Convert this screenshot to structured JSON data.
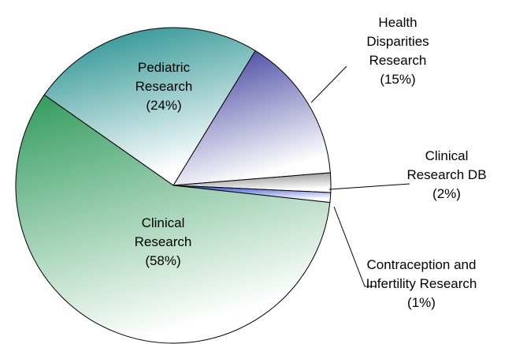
{
  "chart_data": {
    "type": "pie",
    "categories": [
      "Pediatric Research",
      "Health Disparities Research",
      "Clinical Research DB",
      "Contraception and Infertility Research",
      "Clinical Research"
    ],
    "values": [
      24,
      15,
      2,
      1,
      58
    ],
    "value_labels": [
      "(24%)",
      "(15%)",
      "(2%)",
      "(1%)",
      "(58%)"
    ],
    "colors": [
      "#1a8a8a",
      "#34349a",
      "#7a7a7a",
      "#1f3fd0",
      "#2f9a5a"
    ]
  }
}
